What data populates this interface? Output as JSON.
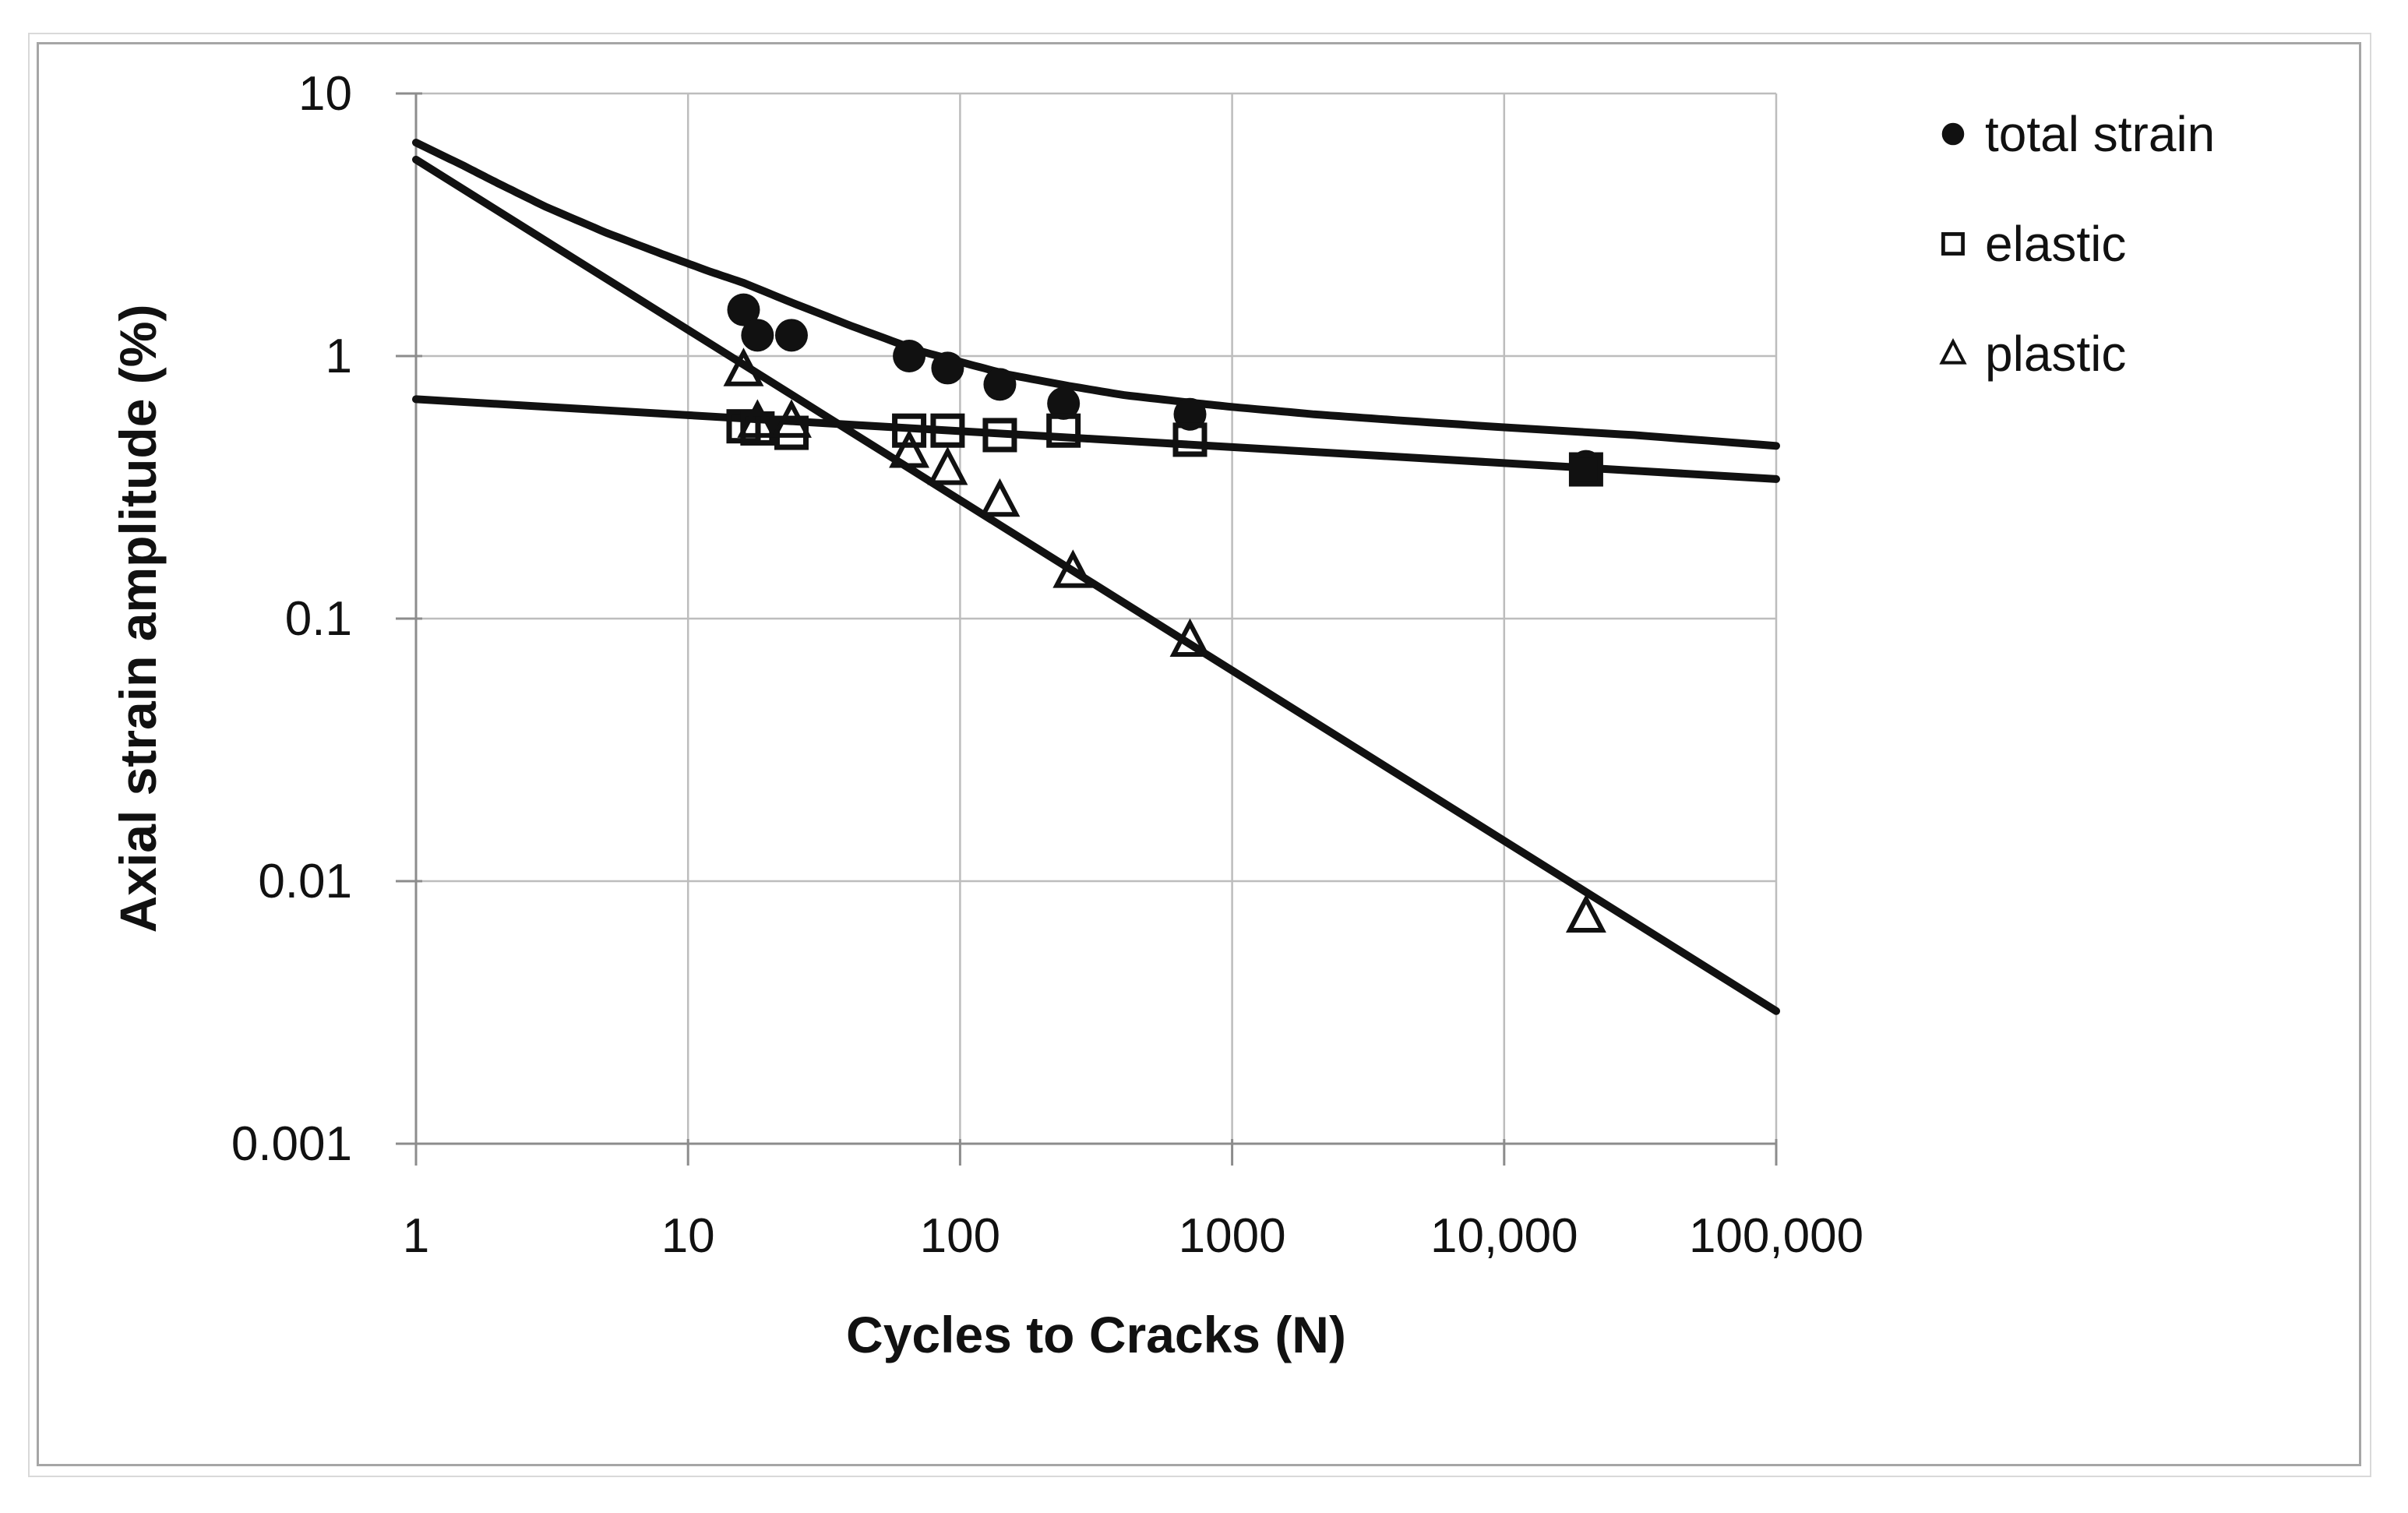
{
  "colors": {
    "ink": "#111111",
    "grid": "#bdbdbd",
    "axis": "#8c8c8c",
    "frame_outer": "#d9d9d9",
    "frame_inner": "#a6a6a6",
    "background": "#ffffff"
  },
  "chart_data": {
    "type": "scatter",
    "scale": "log-log",
    "title": "",
    "grid": "on",
    "legend_position": "right-top",
    "x_axis": {
      "label": "Cycles to Cracks (N)",
      "min": 1,
      "max": 100000,
      "tick_values": [
        1,
        10,
        100,
        1000,
        10000,
        100000
      ],
      "tick_labels": [
        "1",
        "10",
        "100",
        "1000",
        "10,000",
        "100,000"
      ]
    },
    "y_axis": {
      "label": "Axial strain amplitude (%)",
      "min": 0.001,
      "max": 10,
      "tick_values": [
        10,
        1,
        0.1,
        0.01,
        0.001
      ],
      "tick_labels": [
        "10",
        "1",
        "0.1",
        "0.01",
        "0.001"
      ]
    },
    "series": [
      {
        "name": "total strain",
        "marker": "filled-circle",
        "points": [
          [
            16,
            1.5
          ],
          [
            18,
            1.2
          ],
          [
            24,
            1.2
          ],
          [
            65,
            1.0
          ],
          [
            90,
            0.9
          ],
          [
            140,
            0.78
          ],
          [
            240,
            0.66
          ],
          [
            700,
            0.6
          ],
          [
            20000,
            0.38
          ]
        ]
      },
      {
        "name": "elastic",
        "marker": "open-square",
        "points": [
          [
            16,
            0.54
          ],
          [
            18,
            0.53
          ],
          [
            24,
            0.51
          ],
          [
            65,
            0.52
          ],
          [
            90,
            0.52
          ],
          [
            140,
            0.5
          ],
          [
            240,
            0.52
          ],
          [
            700,
            0.48
          ],
          [
            20000,
            0.37,
            "filled"
          ]
        ]
      },
      {
        "name": "plastic",
        "marker": "open-triangle",
        "points": [
          [
            16,
            0.88
          ],
          [
            18,
            0.56
          ],
          [
            24,
            0.56
          ],
          [
            65,
            0.43
          ],
          [
            90,
            0.37
          ],
          [
            140,
            0.28
          ],
          [
            260,
            0.15
          ],
          [
            700,
            0.082
          ],
          [
            20000,
            0.0073
          ]
        ]
      }
    ],
    "fit_curves": [
      {
        "name": "total strain fit",
        "points": [
          [
            1,
            6.5
          ],
          [
            1.5,
            5.3
          ],
          [
            2,
            4.55
          ],
          [
            3,
            3.7
          ],
          [
            5,
            2.95
          ],
          [
            8,
            2.45
          ],
          [
            12,
            2.1
          ],
          [
            16,
            1.9
          ],
          [
            24,
            1.6
          ],
          [
            40,
            1.3
          ],
          [
            70,
            1.05
          ],
          [
            100,
            0.95
          ],
          [
            150,
            0.85
          ],
          [
            250,
            0.77
          ],
          [
            400,
            0.71
          ],
          [
            700,
            0.665
          ],
          [
            1000,
            0.64
          ],
          [
            2000,
            0.6
          ],
          [
            4000,
            0.57
          ],
          [
            10000,
            0.535
          ],
          [
            30000,
            0.5
          ],
          [
            100000,
            0.455
          ]
        ]
      },
      {
        "name": "elastic fit",
        "points": [
          [
            1,
            0.685
          ],
          [
            100000,
            0.34
          ]
        ]
      },
      {
        "name": "plastic fit",
        "points": [
          [
            1,
            5.6
          ],
          [
            100000,
            0.0032
          ]
        ]
      }
    ]
  }
}
